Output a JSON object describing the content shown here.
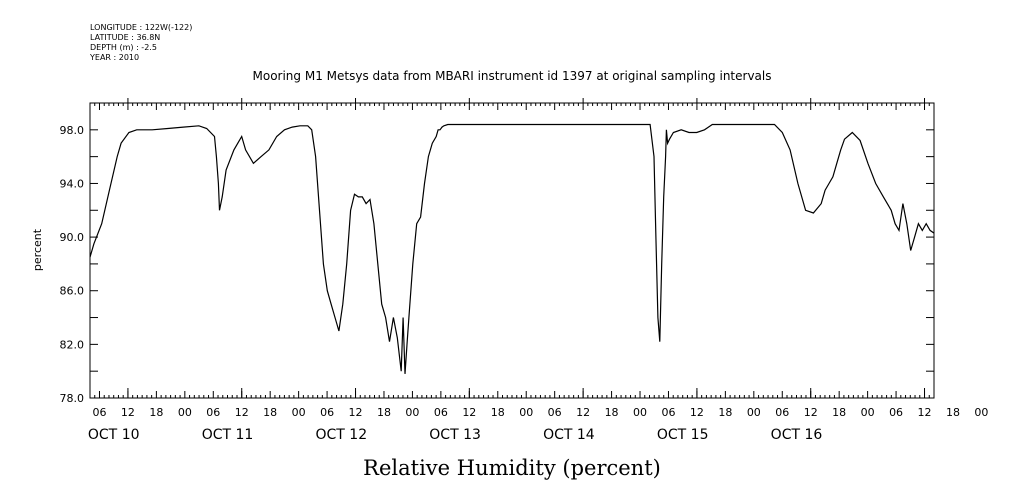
{
  "header": {
    "longitude": "LONGITUDE : 122W(-122)",
    "latitude": "LATITUDE : 36.8N",
    "depth": "DEPTH (m) : -2.5",
    "year": "YEAR : 2010"
  },
  "chart_data": {
    "type": "line",
    "title": "Mooring M1 Metsys data from MBARI instrument id 1397 at original sampling intervals",
    "xlabel": "Relative Humidity (percent)",
    "ylabel": "percent",
    "ylim": [
      78,
      100
    ],
    "xlim_hours": [
      -8,
      170
    ],
    "y_ticks": [
      "78.0",
      "82.0",
      "86.0",
      "90.0",
      "94.0",
      "98.0"
    ],
    "hour_tick_labels": [
      "06",
      "12",
      "18",
      "00",
      "06",
      "12",
      "18",
      "00",
      "06",
      "12",
      "18",
      "00",
      "06",
      "12",
      "18",
      "00",
      "06",
      "12",
      "18",
      "00",
      "06",
      "12",
      "18",
      "00",
      "06",
      "12",
      "18",
      "00",
      "06",
      "12",
      "18",
      "00"
    ],
    "day_labels": [
      "OCT 10",
      "OCT 11",
      "OCT 12",
      "OCT 13",
      "OCT 14",
      "OCT 15",
      "OCT 16"
    ],
    "grid": false,
    "series": [
      {
        "x": [
          -8,
          -7,
          -5,
          -3,
          -1,
          0,
          2,
          4,
          8,
          12,
          16,
          20,
          22,
          24,
          24.5,
          25,
          25.3,
          26,
          27,
          29,
          30,
          31,
          32,
          34,
          36,
          38,
          40,
          42,
          44,
          46,
          48,
          49,
          50,
          51,
          52,
          53,
          54,
          55,
          56,
          57,
          58,
          59,
          60,
          61,
          62,
          63,
          64,
          65,
          66,
          67,
          68,
          69,
          70,
          71,
          72,
          72.5,
          73,
          73.5,
          74,
          75,
          76,
          77,
          78,
          79,
          80,
          81,
          81.5,
          82,
          82.5,
          83,
          84,
          85,
          86,
          87,
          88,
          90,
          92,
          94,
          96,
          98,
          100,
          110,
          120,
          130,
          136,
          137,
          137.5,
          138,
          138.5,
          139,
          139.5,
          140,
          140.2,
          140.5,
          141,
          142,
          144,
          146,
          148,
          150,
          152,
          156,
          160,
          164,
          168,
          170,
          172,
          174,
          176,
          178,
          180,
          181,
          182,
          183,
          184,
          185,
          186,
          188,
          190,
          192,
          194,
          196,
          198,
          199,
          200,
          201,
          202,
          203,
          204,
          205,
          206,
          207,
          208,
          209
        ],
        "y": [
          88.5,
          89.5,
          91,
          93.5,
          96,
          97,
          97.8,
          98,
          98,
          98.1,
          98.2,
          98.3,
          98.1,
          97.5,
          96,
          94,
          92,
          93,
          95,
          96.5,
          97,
          97.5,
          96.5,
          95.5,
          96,
          96.5,
          97.5,
          98,
          98.2,
          98.3,
          98.3,
          98,
          96,
          92,
          88,
          86,
          85,
          84,
          83,
          85,
          88,
          92,
          93.2,
          93,
          93,
          92.5,
          92.8,
          91,
          88,
          85,
          84,
          82.2,
          84,
          82.5,
          80,
          84,
          79.8,
          82,
          84,
          88,
          91,
          91.5,
          94,
          96,
          97,
          97.5,
          98,
          98,
          98.2,
          98.3,
          98.4,
          98.4,
          98.4,
          98.4,
          98.4,
          98.4,
          98.4,
          98.4,
          98.4,
          98.4,
          98.4,
          98.4,
          98.4,
          98.4,
          98.4,
          96,
          90,
          84,
          82.2,
          88,
          93,
          96,
          98,
          97,
          97.3,
          97.8,
          98,
          97.8,
          97.8,
          98,
          98.4,
          98.4,
          98.4,
          98.4,
          98.4,
          97.8,
          96.5,
          94,
          92,
          91.8,
          92.5,
          93.5,
          94,
          94.5,
          95.5,
          96.5,
          97.3,
          97.8,
          97.2,
          95.5,
          94,
          93,
          92,
          91,
          90.5,
          92.5,
          91,
          89,
          90,
          91,
          90.5,
          91,
          90.5,
          90.3
        ]
      }
    ]
  }
}
